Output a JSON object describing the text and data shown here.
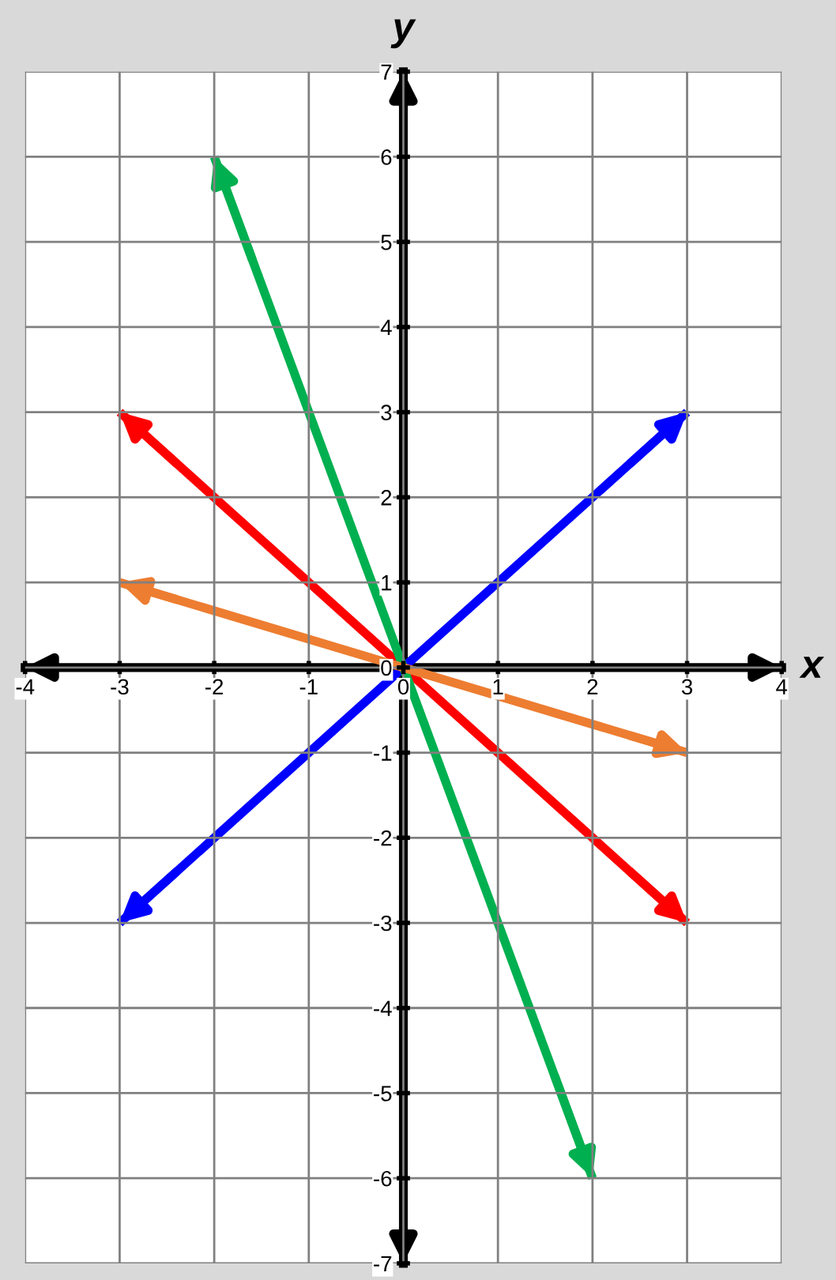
{
  "chart_data": {
    "type": "line",
    "xlabel": "x",
    "ylabel": "y",
    "series": [
      {
        "color": "#0000ff",
        "x": [
          -3,
          3
        ],
        "values": [
          -3,
          3
        ]
      },
      {
        "color": "#ff0000",
        "x": [
          -3,
          3
        ],
        "values": [
          3,
          -3
        ]
      },
      {
        "color": "#00b050",
        "x": [
          -2,
          2
        ],
        "values": [
          6,
          -6
        ]
      },
      {
        "color": "#ed7d31",
        "x": [
          -3,
          3
        ],
        "values": [
          1,
          -1
        ]
      }
    ],
    "xlim": [
      -4,
      4
    ],
    "ylim": [
      -7,
      7
    ],
    "xticks": [
      -4,
      -3,
      -2,
      -1,
      0,
      1,
      2,
      3,
      4
    ],
    "yticks": [
      -7,
      -6,
      -5,
      -4,
      -3,
      -2,
      -1,
      0,
      1,
      2,
      3,
      4,
      5,
      6,
      7
    ],
    "grid": true
  }
}
